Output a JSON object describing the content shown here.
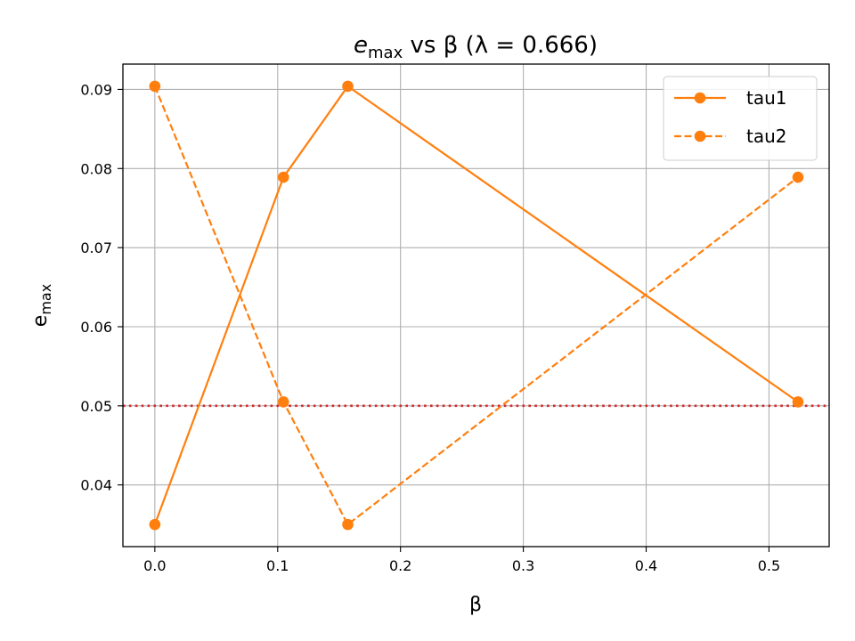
{
  "chart_data": {
    "type": "line",
    "title": {
      "main": "e",
      "sub": "max",
      "rest": " vs β (λ = 0.666)"
    },
    "xlabel": "β",
    "ylabel": {
      "main": "e",
      "sub": "max"
    },
    "xlim": [
      -0.026,
      0.549
    ],
    "ylim": [
      0.0322,
      0.0932
    ],
    "xticks": [
      0.0,
      0.1,
      0.2,
      0.3,
      0.4,
      0.5
    ],
    "xtick_labels": [
      "0.0",
      "0.1",
      "0.2",
      "0.3",
      "0.4",
      "0.5"
    ],
    "yticks": [
      0.04,
      0.05,
      0.06,
      0.07,
      0.08,
      0.09
    ],
    "ytick_labels": [
      "0.04",
      "0.05",
      "0.06",
      "0.07",
      "0.08",
      "0.09"
    ],
    "grid": true,
    "legend_position": "top-right",
    "series": [
      {
        "name": "tau1",
        "style": "solid",
        "color": "#ff7f0e",
        "x": [
          0.0,
          0.1047,
          0.1571,
          0.5236
        ],
        "y": [
          0.035,
          0.0789,
          0.0904,
          0.0505
        ]
      },
      {
        "name": "tau2",
        "style": "dashed",
        "color": "#ff7f0e",
        "x": [
          0.0,
          0.1047,
          0.1571,
          0.5236
        ],
        "y": [
          0.0904,
          0.0505,
          0.035,
          0.0789
        ]
      }
    ],
    "reference_line": {
      "y": 0.05,
      "style": "dotted",
      "color": "#d62728"
    }
  }
}
